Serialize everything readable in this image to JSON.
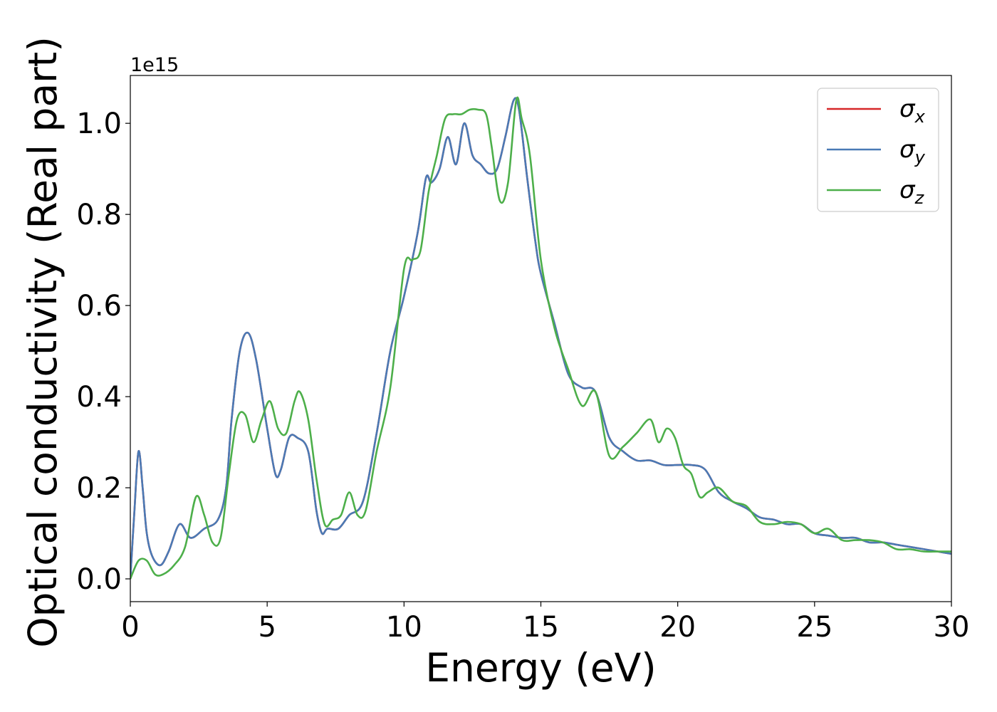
{
  "chart_data": {
    "type": "line",
    "xlabel": "Energy (eV)",
    "ylabel": "Optical conductivity (Real part)",
    "y_offset_label": "1e15",
    "xlim": [
      0,
      30
    ],
    "ylim": [
      -0.05,
      1.105
    ],
    "x_ticks": [
      "0",
      "5",
      "10",
      "15",
      "20",
      "25",
      "30"
    ],
    "y_ticks": [
      "0.0",
      "0.2",
      "0.4",
      "0.6",
      "0.8",
      "1.0"
    ],
    "grid": false,
    "legend_position": "top-right",
    "series": [
      {
        "name": "σx",
        "symbol": "σ",
        "subscript": "x",
        "color": "#d62728",
        "x": [
          0,
          0.15,
          0.3,
          0.45,
          0.6,
          0.8,
          1.1,
          1.4,
          1.8,
          2.2,
          2.7,
          3.2,
          3.5,
          3.7,
          4.0,
          4.3,
          4.6,
          5.0,
          5.3,
          5.5,
          5.8,
          6.1,
          6.5,
          6.8,
          7.0,
          7.2,
          7.6,
          8.0,
          8.5,
          9.0,
          9.5,
          10.0,
          10.5,
          10.8,
          11.0,
          11.3,
          11.6,
          11.9,
          12.2,
          12.5,
          12.8,
          13.1,
          13.4,
          13.7,
          14.0,
          14.2,
          14.5,
          14.8,
          15.0,
          15.5,
          16.0,
          16.5,
          17.0,
          17.5,
          18.0,
          18.5,
          19.0,
          19.5,
          20.0,
          20.5,
          21.0,
          21.5,
          22.0,
          22.5,
          23.0,
          23.5,
          24.0,
          24.5,
          25.0,
          25.5,
          26.0,
          26.5,
          27.0,
          27.5,
          28.0,
          28.5,
          29.0,
          29.5,
          30.0
        ],
        "y": [
          0,
          0.15,
          0.28,
          0.2,
          0.1,
          0.05,
          0.03,
          0.06,
          0.12,
          0.09,
          0.11,
          0.13,
          0.2,
          0.35,
          0.5,
          0.54,
          0.48,
          0.33,
          0.23,
          0.24,
          0.31,
          0.31,
          0.28,
          0.15,
          0.1,
          0.11,
          0.11,
          0.14,
          0.17,
          0.32,
          0.5,
          0.62,
          0.76,
          0.88,
          0.87,
          0.9,
          0.97,
          0.91,
          1.0,
          0.93,
          0.91,
          0.89,
          0.9,
          0.97,
          1.05,
          1.03,
          0.88,
          0.74,
          0.67,
          0.56,
          0.45,
          0.42,
          0.41,
          0.31,
          0.28,
          0.26,
          0.26,
          0.25,
          0.25,
          0.25,
          0.24,
          0.19,
          0.17,
          0.155,
          0.135,
          0.13,
          0.12,
          0.12,
          0.1,
          0.095,
          0.09,
          0.09,
          0.08,
          0.08,
          0.075,
          0.07,
          0.065,
          0.06,
          0.055
        ]
      },
      {
        "name": "σy",
        "symbol": "σ",
        "subscript": "y",
        "color": "#4a7ab5",
        "x": [
          0,
          0.15,
          0.3,
          0.45,
          0.6,
          0.8,
          1.1,
          1.4,
          1.8,
          2.2,
          2.7,
          3.2,
          3.5,
          3.7,
          4.0,
          4.3,
          4.6,
          5.0,
          5.3,
          5.5,
          5.8,
          6.1,
          6.5,
          6.8,
          7.0,
          7.2,
          7.6,
          8.0,
          8.5,
          9.0,
          9.5,
          10.0,
          10.5,
          10.8,
          11.0,
          11.3,
          11.6,
          11.9,
          12.2,
          12.5,
          12.8,
          13.1,
          13.4,
          13.7,
          14.0,
          14.2,
          14.5,
          14.8,
          15.0,
          15.5,
          16.0,
          16.5,
          17.0,
          17.5,
          18.0,
          18.5,
          19.0,
          19.5,
          20.0,
          20.5,
          21.0,
          21.5,
          22.0,
          22.5,
          23.0,
          23.5,
          24.0,
          24.5,
          25.0,
          25.5,
          26.0,
          26.5,
          27.0,
          27.5,
          28.0,
          28.5,
          29.0,
          29.5,
          30.0
        ],
        "y": [
          0,
          0.15,
          0.28,
          0.2,
          0.1,
          0.05,
          0.03,
          0.06,
          0.12,
          0.09,
          0.11,
          0.13,
          0.2,
          0.35,
          0.5,
          0.54,
          0.48,
          0.33,
          0.23,
          0.24,
          0.31,
          0.31,
          0.28,
          0.15,
          0.1,
          0.11,
          0.11,
          0.14,
          0.17,
          0.32,
          0.5,
          0.62,
          0.76,
          0.88,
          0.87,
          0.9,
          0.97,
          0.91,
          1.0,
          0.93,
          0.91,
          0.89,
          0.9,
          0.97,
          1.05,
          1.03,
          0.88,
          0.74,
          0.67,
          0.56,
          0.45,
          0.42,
          0.41,
          0.31,
          0.28,
          0.26,
          0.26,
          0.25,
          0.25,
          0.25,
          0.24,
          0.19,
          0.17,
          0.155,
          0.135,
          0.13,
          0.12,
          0.12,
          0.1,
          0.095,
          0.09,
          0.09,
          0.08,
          0.08,
          0.075,
          0.07,
          0.065,
          0.06,
          0.055
        ]
      },
      {
        "name": "σz",
        "symbol": "σ",
        "subscript": "z",
        "color": "#4daf4a",
        "x": [
          0,
          0.3,
          0.6,
          0.9,
          1.2,
          1.6,
          2.0,
          2.4,
          2.7,
          3.0,
          3.3,
          3.6,
          3.9,
          4.2,
          4.5,
          4.8,
          5.1,
          5.4,
          5.7,
          6.0,
          6.2,
          6.5,
          6.8,
          7.1,
          7.4,
          7.7,
          8.0,
          8.3,
          8.6,
          9.0,
          9.5,
          10.0,
          10.3,
          10.6,
          10.9,
          11.2,
          11.5,
          11.8,
          12.1,
          12.4,
          12.7,
          13.0,
          13.2,
          13.5,
          13.8,
          14.1,
          14.3,
          14.6,
          15.0,
          15.5,
          16.0,
          16.5,
          17.0,
          17.5,
          18.0,
          18.5,
          19.0,
          19.3,
          19.6,
          19.9,
          20.2,
          20.5,
          20.8,
          21.1,
          21.5,
          22.0,
          22.5,
          23.0,
          23.5,
          24.0,
          24.5,
          25.0,
          25.5,
          26.0,
          26.5,
          27.0,
          27.5,
          28.0,
          28.5,
          29.0,
          29.5,
          30.0
        ],
        "y": [
          0,
          0.04,
          0.04,
          0.01,
          0.01,
          0.03,
          0.07,
          0.18,
          0.14,
          0.08,
          0.09,
          0.23,
          0.35,
          0.36,
          0.3,
          0.35,
          0.39,
          0.33,
          0.32,
          0.39,
          0.41,
          0.35,
          0.22,
          0.12,
          0.13,
          0.14,
          0.19,
          0.14,
          0.15,
          0.28,
          0.42,
          0.68,
          0.7,
          0.72,
          0.85,
          0.93,
          1.01,
          1.02,
          1.02,
          1.03,
          1.03,
          1.02,
          0.95,
          0.83,
          0.87,
          1.05,
          1.01,
          0.93,
          0.7,
          0.55,
          0.46,
          0.38,
          0.41,
          0.27,
          0.29,
          0.32,
          0.35,
          0.3,
          0.33,
          0.31,
          0.25,
          0.23,
          0.18,
          0.19,
          0.2,
          0.17,
          0.16,
          0.125,
          0.12,
          0.125,
          0.12,
          0.1,
          0.11,
          0.085,
          0.085,
          0.085,
          0.08,
          0.065,
          0.065,
          0.06,
          0.06,
          0.06
        ]
      }
    ]
  }
}
